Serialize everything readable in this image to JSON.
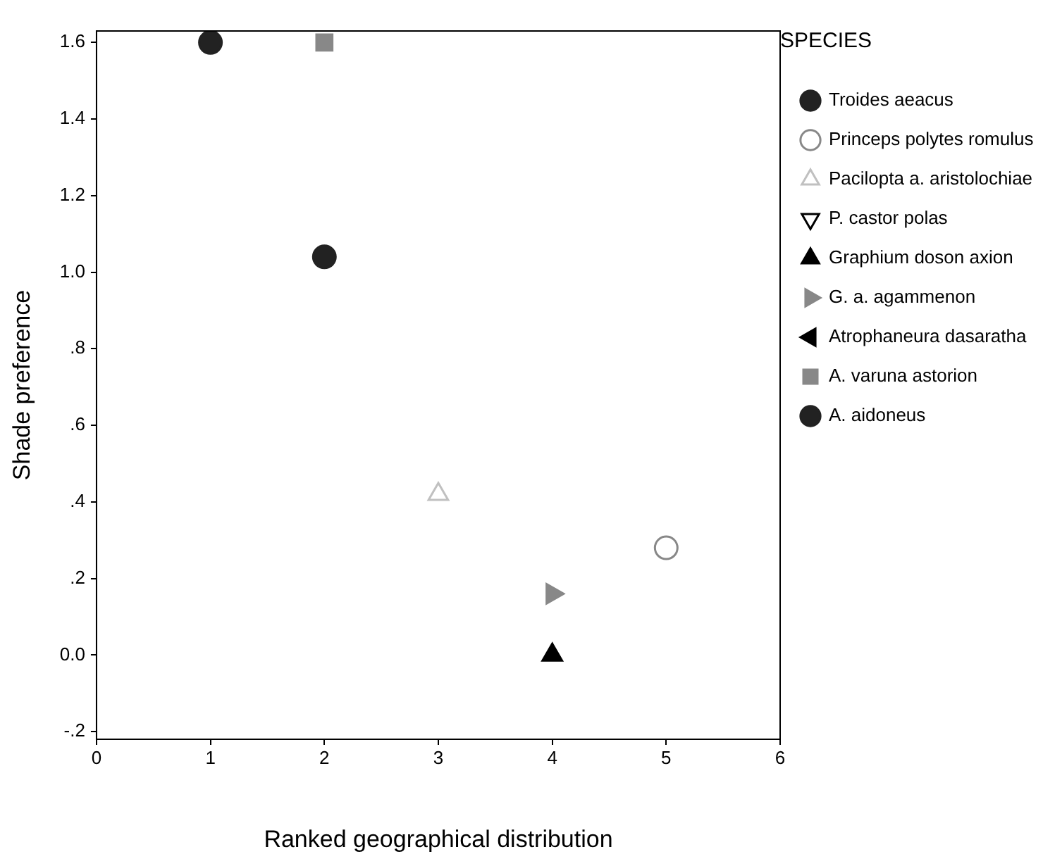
{
  "chart_data": {
    "type": "scatter",
    "xlabel": "Ranked geographical distribution",
    "ylabel": "Shade preference",
    "legend_title": "SPECIES",
    "legend": "right",
    "grid": false,
    "xlim": [
      0,
      6
    ],
    "xticks": [
      0,
      1,
      2,
      3,
      4,
      5,
      6
    ],
    "ylim": [
      -0.22,
      1.63
    ],
    "yticks": [
      {
        "value": -0.2,
        "label": "-.2"
      },
      {
        "value": 0,
        "label": "0.0"
      },
      {
        "value": 0.2,
        "label": ".2"
      },
      {
        "value": 0.4,
        "label": ".4"
      },
      {
        "value": 0.6,
        "label": ".6"
      },
      {
        "value": 0.8,
        "label": ".8"
      },
      {
        "value": 1,
        "label": "1.0"
      },
      1.2,
      1.4,
      1.6
    ],
    "series": [
      {
        "name": "Troides aeacus",
        "color": "#222222",
        "marker": "circle",
        "x": [
          1
        ],
        "values": [
          1.6
        ]
      },
      {
        "name": "Princeps polytes romulus",
        "color": "#888888",
        "marker": "circle-open",
        "x": [
          5
        ],
        "values": [
          0.28
        ]
      },
      {
        "name": "Pacilopta a. aristolochiae",
        "color": "#c0c0c0",
        "marker": "triangle-open",
        "x": [
          3
        ],
        "values": [
          0.42
        ]
      },
      {
        "name": "P. castor polas",
        "color": "#000000",
        "marker": "triangle-down-open"
      },
      {
        "name": "Graphium doson axion",
        "color": "#000000",
        "marker": "triangle",
        "x": [
          4
        ],
        "values": [
          0
        ]
      },
      {
        "name": "G. a. agammenon",
        "color": "#888888",
        "marker": "triangle-right",
        "x": [
          4
        ],
        "values": [
          0.16
        ]
      },
      {
        "name": "Atrophaneura dasaratha",
        "color": "#000000",
        "marker": "triangle-left"
      },
      {
        "name": "A. varuna astorion",
        "color": "#888888",
        "marker": "square",
        "x": [
          2
        ],
        "values": [
          1.6
        ]
      },
      {
        "name": "A. aidoneus",
        "color": "#222222",
        "marker": "circle",
        "x": [
          2
        ],
        "values": [
          1.04
        ]
      }
    ]
  }
}
